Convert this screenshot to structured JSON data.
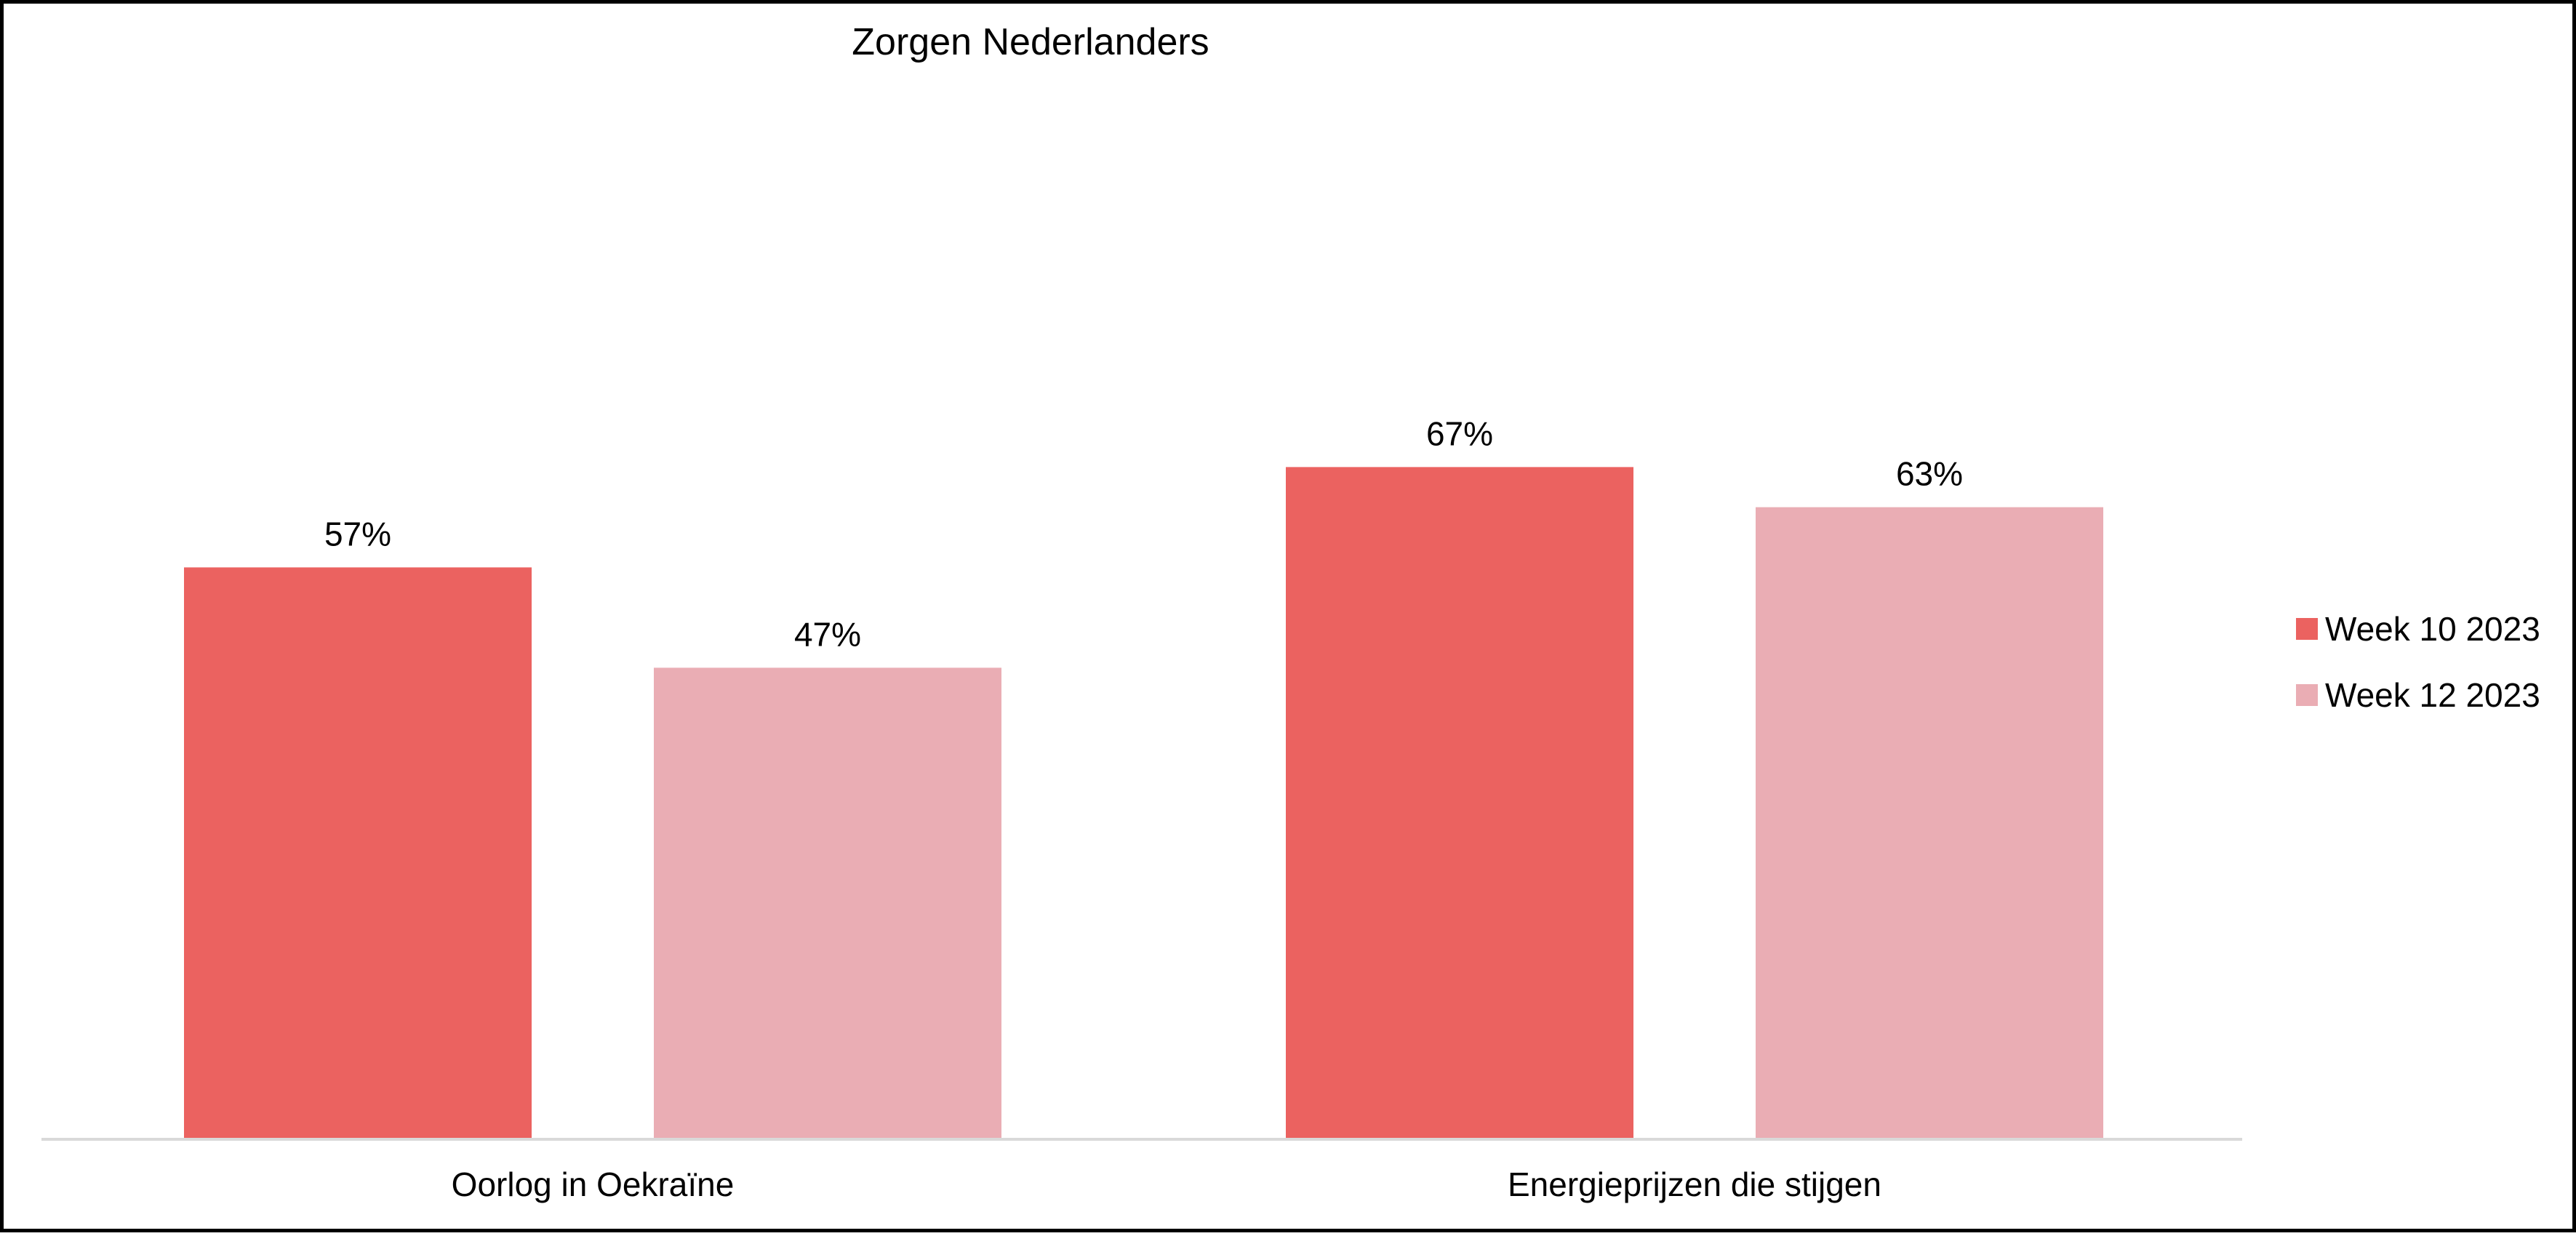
{
  "chart_data": {
    "type": "bar",
    "title": "Zorgen Nederlanders",
    "xlabel": "",
    "ylabel": "",
    "ylim": [
      0,
      100
    ],
    "grid": false,
    "legend_position": "right",
    "categories": [
      "Oorlog in Oekraïne",
      "Energieprijzen die stijgen"
    ],
    "series": [
      {
        "name": "Week 10 2023",
        "color": "#EB6260",
        "values": [
          57,
          67
        ],
        "labels": [
          "57%",
          "67%"
        ]
      },
      {
        "name": "Week 12 2023",
        "color": "#EAADB4",
        "values": [
          47,
          63
        ],
        "labels": [
          "47%",
          "63%"
        ]
      }
    ]
  }
}
